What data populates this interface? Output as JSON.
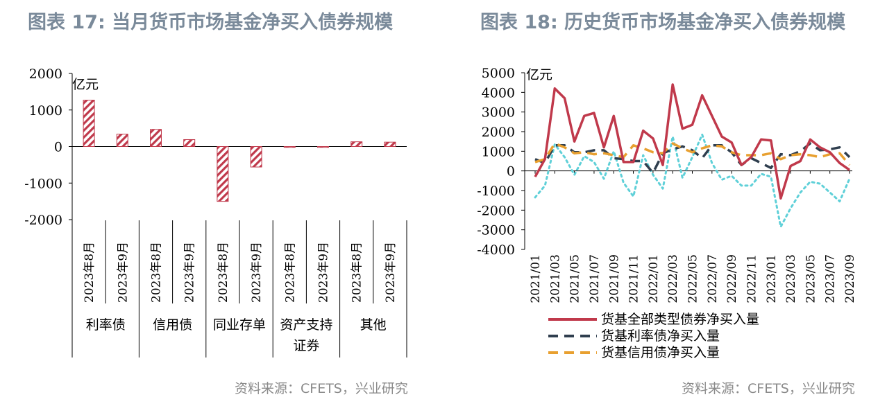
{
  "left": {
    "title": "图表 17: 当月货币市场基金净买入债券规模",
    "source": "资料来源：CFETS，兴业研究",
    "chart_data": {
      "type": "bar",
      "unit": "亿元",
      "ylim": [
        -2000,
        2000
      ],
      "yticks": [
        2000,
        1000,
        0,
        -1000,
        -2000
      ],
      "groups": [
        {
          "name": "利率债",
          "categories": [
            "2023年8月",
            "2023年9月"
          ],
          "values": [
            1270,
            340
          ]
        },
        {
          "name": "信用债",
          "categories": [
            "2023年8月",
            "2023年9月"
          ],
          "values": [
            470,
            190
          ]
        },
        {
          "name": "同业存单",
          "categories": [
            "2023年8月",
            "2023年9月"
          ],
          "values": [
            -1500,
            -560
          ]
        },
        {
          "name": "资产支持证券",
          "categories": [
            "2023年8月",
            "2023年9月"
          ],
          "values": [
            -10,
            -5
          ]
        },
        {
          "name": "其他",
          "categories": [
            "2023年8月",
            "2023年9月"
          ],
          "values": [
            130,
            120
          ]
        }
      ],
      "bar_color": "#c0394b"
    }
  },
  "right": {
    "title": "图表 18: 历史货币市场基金净买入债券规模",
    "source": "资料来源：CFETS，兴业研究",
    "chart_data": {
      "type": "line",
      "unit": "亿元",
      "ylim": [
        -4000,
        5000
      ],
      "yticks": [
        5000,
        4000,
        3000,
        2000,
        1000,
        0,
        -1000,
        -2000,
        -3000,
        -4000
      ],
      "xtick_labels": [
        "2021/01",
        "2021/03",
        "2021/05",
        "2021/07",
        "2021/09",
        "2021/11",
        "2022/01",
        "2022/03",
        "2022/05",
        "2022/07",
        "2022/09",
        "2022/11",
        "2023/01",
        "2023/03",
        "2023/05",
        "2023/07",
        "2023/09"
      ],
      "series": [
        {
          "name": "货基全部类型债券净买入量",
          "color": "#c0394b",
          "dash": "solid",
          "values": [
            -300,
            600,
            4200,
            3700,
            1500,
            2800,
            2950,
            1200,
            2800,
            450,
            450,
            2050,
            1650,
            300,
            4400,
            2150,
            2350,
            3850,
            2800,
            1750,
            1450,
            300,
            700,
            1600,
            1550,
            -1400,
            250,
            500,
            1600,
            1200,
            950,
            400,
            50
          ]
        },
        {
          "name": "货基利率债净买入量",
          "color": "#2f3e4e",
          "dash": "dashed",
          "values": [
            600,
            400,
            1300,
            1300,
            950,
            950,
            1050,
            1050,
            650,
            600,
            500,
            500,
            -100,
            900,
            1100,
            1250,
            1050,
            650,
            1300,
            1300,
            950,
            300,
            650,
            400,
            150,
            850,
            800,
            1000,
            1400,
            1050,
            1100,
            1200,
            700
          ]
        },
        {
          "name": "货基信用债净买入量",
          "color": "#e8a030",
          "dash": "dashed",
          "values": [
            450,
            600,
            1400,
            1200,
            900,
            950,
            850,
            900,
            800,
            700,
            1300,
            1150,
            950,
            900,
            1400,
            1150,
            950,
            1150,
            1300,
            1250,
            950,
            800,
            800,
            800,
            900,
            600,
            800,
            850,
            800,
            700,
            850,
            900,
            300
          ]
        },
        {
          "name": "",
          "color": "#5fd0d8",
          "dash": "dotted",
          "values": [
            -1350,
            -750,
            1350,
            700,
            -200,
            750,
            450,
            -400,
            1000,
            -600,
            -1300,
            800,
            -200,
            -900,
            1750,
            -350,
            700,
            1850,
            400,
            -450,
            -250,
            -750,
            -750,
            -150,
            -300,
            -2850,
            -1900,
            -1100,
            -550,
            -650,
            -1100,
            -1550,
            -400
          ]
        }
      ],
      "legend": [
        "货基全部类型债券净买入量",
        "货基利率债净买入量",
        "货基信用债净买入量"
      ],
      "legend_position": "bottom-left"
    }
  }
}
